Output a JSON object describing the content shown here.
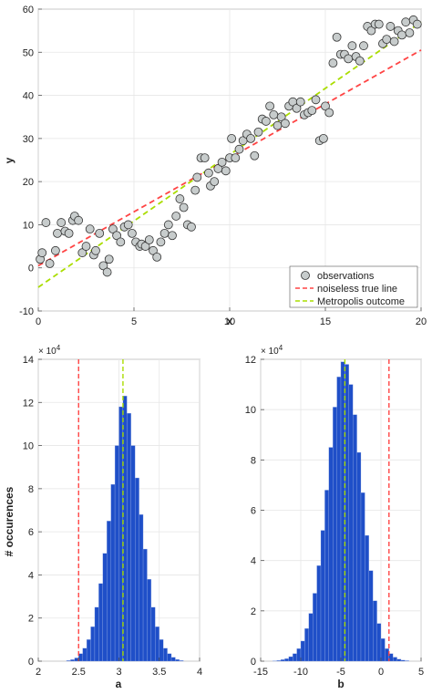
{
  "colors": {
    "observation_fill": "#c7cccc",
    "observation_edge": "#333333",
    "true_line": "#ff4444",
    "metropolis_line": "#aadd00",
    "histogram_bar": "#1f4fc8",
    "grid": "#e6e6e6"
  },
  "chart_data": [
    {
      "type": "scatter",
      "xlabel": "x",
      "ylabel": "y",
      "xlim": [
        0,
        20
      ],
      "ylim": [
        -10,
        60
      ],
      "xticks": [
        "0",
        "5",
        "10",
        "15",
        "20"
      ],
      "yticks": [
        "-10",
        "0",
        "10",
        "20",
        "30",
        "40",
        "50",
        "60"
      ],
      "grid": true,
      "legend_position": "bottom-right",
      "legend": [
        "observations",
        "noiseless true line",
        "Metropolis outcome"
      ],
      "series": [
        {
          "name": "observations",
          "x": [
            0.1,
            0.2,
            0.4,
            0.6,
            0.9,
            1.0,
            1.2,
            1.4,
            1.6,
            1.8,
            1.9,
            2.1,
            2.3,
            2.5,
            2.7,
            2.9,
            3.0,
            3.2,
            3.4,
            3.6,
            3.7,
            3.9,
            4.1,
            4.3,
            4.5,
            4.7,
            4.9,
            5.1,
            5.3,
            5.4,
            5.6,
            5.8,
            6.0,
            6.2,
            6.4,
            6.6,
            6.8,
            7.0,
            7.2,
            7.4,
            7.6,
            7.8,
            8.0,
            8.2,
            8.3,
            8.5,
            8.7,
            8.9,
            9.0,
            9.2,
            9.4,
            9.6,
            9.8,
            10.0,
            10.1,
            10.3,
            10.5,
            10.7,
            10.9,
            11.1,
            11.3,
            11.5,
            11.7,
            11.9,
            12.1,
            12.3,
            12.5,
            12.7,
            12.9,
            13.1,
            13.3,
            13.5,
            13.7,
            13.9,
            14.1,
            14.3,
            14.5,
            14.7,
            14.9,
            15.0,
            15.2,
            15.4,
            15.6,
            15.8,
            16.0,
            16.2,
            16.4,
            16.6,
            16.8,
            17.0,
            17.2,
            17.4,
            17.6,
            17.8,
            18.0,
            18.2,
            18.4,
            18.6,
            18.8,
            19.0,
            19.2,
            19.4,
            19.6,
            19.8
          ],
          "y": [
            2.0,
            3.5,
            10.5,
            1.0,
            4.0,
            8.0,
            10.5,
            8.5,
            8.0,
            11.0,
            12.0,
            11.0,
            3.5,
            5.0,
            9.0,
            3.0,
            4.0,
            8.0,
            0.5,
            -1.0,
            2.0,
            9.0,
            7.5,
            6.0,
            9.5,
            10.0,
            8.0,
            6.0,
            5.0,
            5.5,
            5.0,
            6.5,
            4.0,
            2.5,
            6.0,
            8.0,
            10.0,
            7.5,
            12.0,
            16.0,
            14.0,
            10.0,
            9.5,
            18.0,
            21.0,
            25.5,
            25.5,
            22.0,
            19.0,
            20.0,
            23.0,
            24.5,
            22.5,
            25.5,
            30.0,
            25.5,
            27.5,
            29.5,
            31.0,
            30.0,
            26.0,
            31.5,
            34.5,
            34.0,
            37.5,
            35.5,
            33.0,
            35.0,
            33.5,
            37.5,
            38.5,
            37.0,
            38.5,
            35.5,
            36.0,
            36.5,
            39.0,
            29.5,
            30.0,
            37.5,
            36.0,
            47.5,
            53.5,
            49.5,
            49.5,
            48.5,
            51.5,
            49.0,
            48.0,
            51.5,
            56.0,
            55.0,
            56.5,
            56.5,
            52.0,
            53.0,
            56.0,
            52.5,
            55.0,
            54.0,
            57.0,
            54.5,
            57.5,
            56.5
          ]
        },
        {
          "name": "noiseless true line",
          "x": [
            0,
            20
          ],
          "y": [
            0.5,
            50.5
          ]
        },
        {
          "name": "Metropolis outcome",
          "x": [
            0,
            20
          ],
          "y": [
            -4.5,
            57.0
          ]
        }
      ]
    },
    {
      "type": "bar",
      "xlabel": "a",
      "ylabel": "# occurences",
      "xlim": [
        2,
        4
      ],
      "ylim": [
        0,
        140000
      ],
      "xticks": [
        "2",
        "2.5",
        "3",
        "3.5",
        "4"
      ],
      "yticks": [
        "0",
        "2",
        "4",
        "6",
        "8",
        "10",
        "12",
        "14"
      ],
      "multiplier_base": "× 10",
      "multiplier_exp": "4",
      "grid": true,
      "true_value": 2.5,
      "metropolis_value": 3.05,
      "bin_starts": [
        2.35,
        2.4,
        2.45,
        2.5,
        2.55,
        2.6,
        2.65,
        2.7,
        2.75,
        2.8,
        2.85,
        2.9,
        2.95,
        3.0,
        3.05,
        3.1,
        3.15,
        3.2,
        3.25,
        3.3,
        3.35,
        3.4,
        3.45,
        3.5,
        3.55,
        3.6,
        3.65,
        3.7,
        3.75
      ],
      "bin_width": 0.05,
      "values": [
        300,
        700,
        1500,
        3500,
        6000,
        10000,
        16000,
        25000,
        36000,
        50000,
        65000,
        82000,
        100000,
        118000,
        123000,
        115000,
        100000,
        85000,
        68000,
        52000,
        38000,
        25000,
        16000,
        10000,
        6000,
        3500,
        1800,
        800,
        300
      ]
    },
    {
      "type": "bar",
      "xlabel": "b",
      "ylabel": "",
      "xlim": [
        -15,
        5
      ],
      "ylim": [
        0,
        120000
      ],
      "xticks": [
        "-15",
        "-10",
        "-5",
        "0",
        "5"
      ],
      "yticks": [
        "0",
        "2",
        "4",
        "6",
        "8",
        "10",
        "12"
      ],
      "multiplier_base": "× 10",
      "multiplier_exp": "4",
      "grid": true,
      "true_value": 1.0,
      "metropolis_value": -4.5,
      "bin_starts": [
        -13.5,
        -13,
        -12.5,
        -12,
        -11.5,
        -11,
        -10.5,
        -10,
        -9.5,
        -9,
        -8.5,
        -8,
        -7.5,
        -7,
        -6.5,
        -6,
        -5.5,
        -5,
        -4.5,
        -4,
        -3.5,
        -3,
        -2.5,
        -2,
        -1.5,
        -1,
        -0.5,
        0,
        0.5,
        1,
        1.5,
        2,
        2.5,
        3
      ],
      "bin_width": 0.5,
      "values": [
        150,
        300,
        600,
        1000,
        1800,
        3000,
        5000,
        8000,
        13000,
        19000,
        27000,
        38000,
        52000,
        68000,
        85000,
        101000,
        113000,
        119000,
        118000,
        110000,
        98000,
        83000,
        67000,
        50000,
        36000,
        24000,
        15000,
        9000,
        5000,
        3000,
        1600,
        800,
        400,
        200
      ]
    }
  ]
}
